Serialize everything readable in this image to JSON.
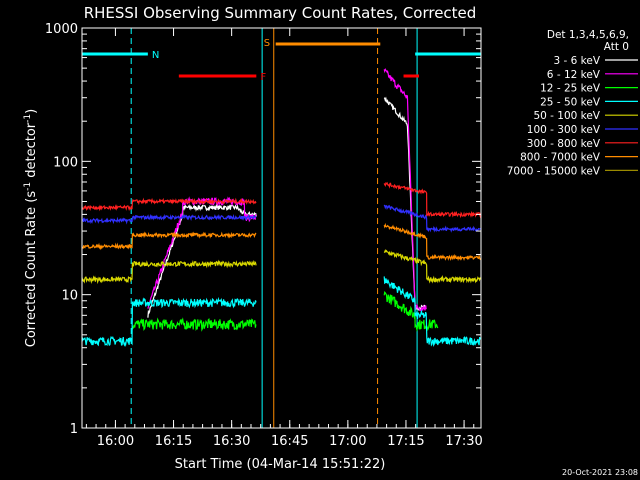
{
  "chart_data": {
    "type": "line",
    "title": "RHESSI Observing Summary Count Rates, Corrected",
    "xlabel": "Start Time (04-Mar-14 15:51:22)",
    "ylabel_main": "Corrected Count Rate (s",
    "ylabel_sup": "-1",
    "ylabel_tail": " detector",
    "ylabel_end": ")",
    "x_unit": "minutes since 15:51:22",
    "xlim": [
      0,
      103
    ],
    "ylim": [
      1,
      1000
    ],
    "yscale": "log",
    "xticks": [
      {
        "label": "16:00",
        "value": 8.63
      },
      {
        "label": "16:15",
        "value": 23.63
      },
      {
        "label": "16:30",
        "value": 38.63
      },
      {
        "label": "16:45",
        "value": 53.63
      },
      {
        "label": "17:00",
        "value": 68.63
      },
      {
        "label": "17:15",
        "value": 83.63
      },
      {
        "label": "17:30",
        "value": 98.63
      }
    ],
    "yticks": [
      {
        "label": "1",
        "value": 1
      },
      {
        "label": "10",
        "value": 10
      },
      {
        "label": "100",
        "value": 100
      },
      {
        "label": "1000",
        "value": 1000
      }
    ],
    "legend_header": [
      "Det 1,3,4,5,6,9,",
      "Att 0"
    ],
    "legend_position": "right",
    "series": [
      {
        "name": "3 - 6 keV",
        "color": "#ffffff",
        "seg": [
          [
            0,
            17,
            "g"
          ],
          [
            17,
            26,
            "r",
            7,
            40
          ],
          [
            26,
            40,
            "v",
            45
          ],
          [
            40,
            42,
            "e",
            45,
            40
          ],
          [
            42,
            45,
            "v",
            40
          ]
        ],
        "post": [
          [
            78,
            84,
            "e",
            300,
            190
          ],
          [
            84,
            86,
            "r",
            190,
            8
          ],
          [
            86,
            89,
            "v",
            8
          ]
        ],
        "noise": 0.04
      },
      {
        "name": "6 - 12 keV",
        "color": "#ff00ff",
        "seg": [
          [
            0,
            17,
            "g"
          ],
          [
            17,
            26,
            "r",
            8,
            42
          ],
          [
            26,
            42,
            "v",
            50
          ],
          [
            42,
            45,
            "v",
            38
          ]
        ],
        "post": [
          [
            78,
            84,
            "e",
            480,
            300
          ],
          [
            84,
            86,
            "r",
            300,
            8
          ],
          [
            86,
            89,
            "v",
            8
          ]
        ],
        "noise": 0.06
      },
      {
        "name": "12 - 25 keV",
        "color": "#00ff00",
        "seg": [
          [
            0,
            13,
            "g"
          ],
          [
            13,
            17,
            "v",
            6
          ],
          [
            17,
            45,
            "v",
            6
          ]
        ],
        "post": [
          [
            78,
            86,
            "e",
            10,
            7
          ],
          [
            86,
            92,
            "v",
            6
          ]
        ],
        "noise": 0.09
      },
      {
        "name": "25 - 50 keV",
        "color": "#00ffff",
        "seg": [
          [
            0,
            13,
            "v",
            4.5
          ],
          [
            13,
            45,
            "v",
            8.7
          ]
        ],
        "post": [
          [
            78,
            86,
            "e",
            13,
            9
          ],
          [
            86,
            89,
            "v",
            7
          ],
          [
            89,
            103,
            "v",
            4.5
          ]
        ],
        "noise": 0.07
      },
      {
        "name": "50 - 100 keV",
        "color": "#d8d800",
        "seg": [
          [
            0,
            13,
            "v",
            13
          ],
          [
            13,
            45,
            "v",
            17
          ]
        ],
        "post": [
          [
            78,
            89,
            "e",
            21,
            17
          ],
          [
            89,
            103,
            "v",
            13
          ]
        ],
        "noise": 0.04
      },
      {
        "name": "100 - 300 keV",
        "color": "#3030ff",
        "seg": [
          [
            0,
            13,
            "v",
            36
          ],
          [
            13,
            45,
            "v",
            38
          ]
        ],
        "post": [
          [
            78,
            89,
            "e",
            46,
            38
          ],
          [
            89,
            103,
            "v",
            31
          ]
        ],
        "noise": 0.03
      },
      {
        "name": "300 - 800 keV",
        "color": "#ff2020",
        "seg": [
          [
            0,
            13,
            "v",
            45
          ],
          [
            13,
            45,
            "v",
            50
          ]
        ],
        "post": [
          [
            78,
            89,
            "e",
            68,
            58
          ],
          [
            89,
            103,
            "v",
            40
          ]
        ],
        "noise": 0.03
      },
      {
        "name": "800 - 7000 keV",
        "color": "#ff8c00",
        "seg": [
          [
            0,
            13,
            "v",
            23
          ],
          [
            13,
            45,
            "v",
            28
          ]
        ],
        "post": [
          [
            78,
            89,
            "e",
            33,
            27
          ],
          [
            89,
            103,
            "v",
            19
          ]
        ],
        "noise": 0.03
      },
      {
        "name": "7000 - 15000 keV",
        "color": "#9a8a00",
        "seg": [],
        "post": [],
        "noise": 0.02
      }
    ],
    "flags": [
      {
        "label": "N",
        "color": "#00ffff",
        "ranges": [
          [
            0,
            17
          ],
          [
            86,
            103
          ]
        ],
        "y": 0.935
      },
      {
        "label": "F",
        "color": "#ff0000",
        "ranges": [
          [
            25,
            45
          ],
          [
            83,
            87
          ]
        ],
        "y": 0.88
      },
      {
        "label": "S",
        "color": "#ff8c00",
        "ranges": [
          [
            50,
            77
          ]
        ],
        "y": 0.96
      }
    ],
    "verticals": [
      {
        "x": 12.7,
        "color": "#00ffff",
        "style": "dashed"
      },
      {
        "x": 46.5,
        "color": "#00ffff",
        "style": "solid"
      },
      {
        "x": 49.5,
        "color": "#ff8c00",
        "style": "solid"
      },
      {
        "x": 76.3,
        "color": "#ff8c00",
        "style": "dashed"
      },
      {
        "x": 86.5,
        "color": "#00ffff",
        "style": "solid"
      },
      {
        "x": 103,
        "color": "#00ffff",
        "style": "dashed"
      }
    ],
    "timestamp": "20-Oct-2021 23:08"
  }
}
